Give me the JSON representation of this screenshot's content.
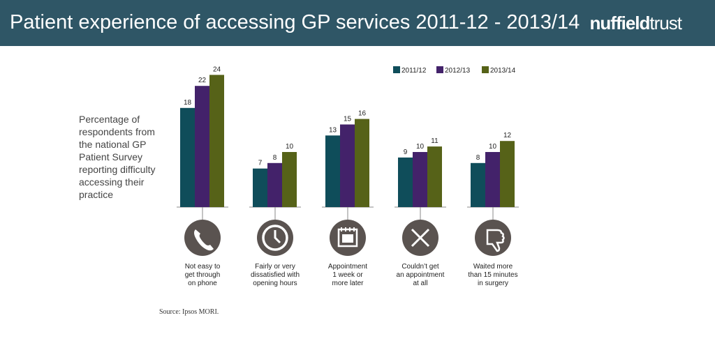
{
  "header": {
    "title": "Patient experience of accessing GP services 2011-12 - 2013/14",
    "logo_bold": "nuffield",
    "logo_light": "trust"
  },
  "ylabel_text": "Percentage of respondents from the national GP Patient Survey reporting difficulty accessing their practice",
  "source": "Source: Ipsos MORI.",
  "colors": {
    "2011/12": "#0f4d5a",
    "2012/13": "#43226a",
    "2013/14": "#566218",
    "icon": "#5a5350"
  },
  "chart_data": {
    "type": "bar",
    "title": "Patient experience of accessing GP services 2011-12 - 2013/14",
    "ylabel": "Percentage of respondents from the national GP Patient Survey reporting difficulty accessing their practice",
    "categories": [
      "Not easy to get through on phone",
      "Fairly or very dissatisfied with opening hours",
      "Appointment 1 week or more later",
      "Couldn't get an appointment at all",
      "Waited more than 15 minutes in surgery"
    ],
    "category_lines": [
      [
        "Not easy to",
        "get through",
        "on phone"
      ],
      [
        "Fairly or very",
        "dissatisfied with",
        "opening hours"
      ],
      [
        "Appointment",
        "1 week or",
        "more later"
      ],
      [
        "Couldn’t get",
        "an appointment",
        "at all"
      ],
      [
        "Waited more",
        "than 15 minutes",
        "in surgery"
      ]
    ],
    "icons": [
      "phone-icon",
      "clock-icon",
      "calendar-icon",
      "cross-icon",
      "thumbs-down-icon"
    ],
    "series": [
      {
        "name": "2011/12",
        "values": [
          18,
          7,
          13,
          9,
          8
        ]
      },
      {
        "name": "2012/13",
        "values": [
          22,
          8,
          15,
          10,
          10
        ]
      },
      {
        "name": "2013/14",
        "values": [
          24,
          10,
          16,
          11,
          12
        ]
      }
    ],
    "ylim": [
      0,
      25
    ],
    "legend": "top-right",
    "grid": false
  }
}
